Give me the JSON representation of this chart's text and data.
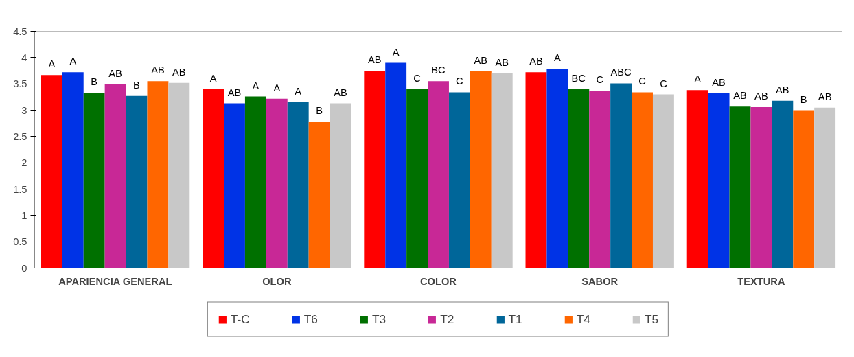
{
  "chart_data": {
    "type": "bar",
    "categories": [
      "APARIENCIA GENERAL",
      "OLOR",
      "COLOR",
      "SABOR",
      "TEXTURA"
    ],
    "ylim": [
      0,
      4.5
    ],
    "yticks": [
      0,
      0.5,
      1,
      1.5,
      2,
      2.5,
      3,
      3.5,
      4,
      4.5
    ],
    "grid": false,
    "legend": "bottom",
    "series": [
      {
        "name": "T-C",
        "color": "#ff0000",
        "values": [
          3.67,
          3.4,
          3.75,
          3.72,
          3.38
        ],
        "value_labels": [
          "A",
          "A",
          "AB",
          "AB",
          "A"
        ]
      },
      {
        "name": "T6",
        "color": "#0033e6",
        "values": [
          3.72,
          3.13,
          3.9,
          3.79,
          3.32
        ],
        "value_labels": [
          "A",
          "AB",
          "A",
          "A",
          "AB"
        ]
      },
      {
        "name": "T3",
        "color": "#007000",
        "values": [
          3.33,
          3.26,
          3.4,
          3.4,
          3.07
        ],
        "value_labels": [
          "B",
          "A",
          "C",
          "BC",
          "AB"
        ]
      },
      {
        "name": "T2",
        "color": "#c82896",
        "values": [
          3.49,
          3.22,
          3.55,
          3.37,
          3.06
        ],
        "value_labels": [
          "AB",
          "A",
          "BC",
          "C",
          "AB"
        ]
      },
      {
        "name": "T1",
        "color": "#006699",
        "values": [
          3.27,
          3.15,
          3.34,
          3.51,
          3.18
        ],
        "value_labels": [
          "B",
          "A",
          "C",
          "ABC",
          "AB"
        ]
      },
      {
        "name": "T4",
        "color": "#ff6600",
        "values": [
          3.55,
          2.78,
          3.74,
          3.34,
          3.0
        ],
        "value_labels": [
          "AB",
          "B",
          "AB",
          "C",
          "B"
        ]
      },
      {
        "name": "T5",
        "color": "#c8c8c8",
        "values": [
          3.52,
          3.13,
          3.7,
          3.3,
          3.05
        ],
        "value_labels": [
          "AB",
          "AB",
          "AB",
          "C",
          "AB"
        ]
      }
    ]
  }
}
